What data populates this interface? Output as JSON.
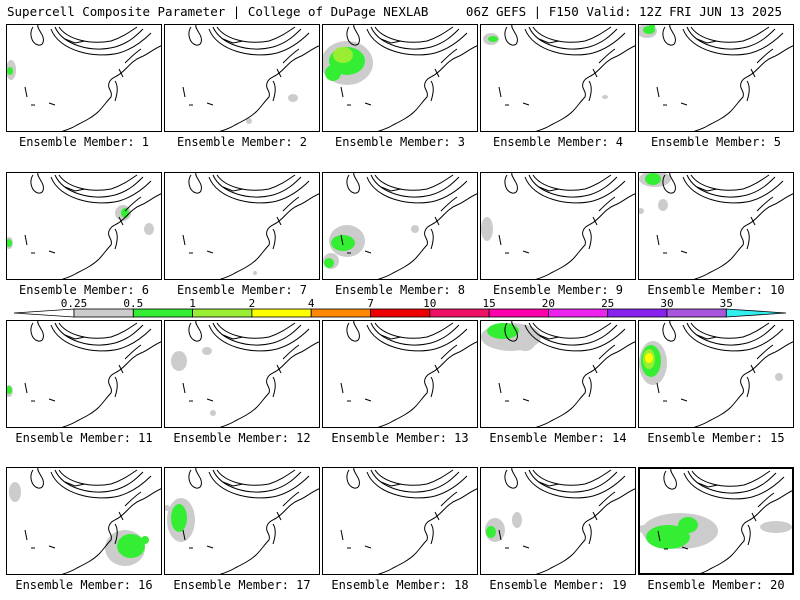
{
  "header": {
    "title_left": "Supercell Composite Parameter | College of DuPage NEXLAB",
    "title_right": "06Z GEFS | F150 Valid: 12Z FRI JUN 13 2025"
  },
  "colors": {
    "fill_025": "#cccccc",
    "fill_05": "#33ee33",
    "fill_1": "#99ee33",
    "fill_2": "#ffff00",
    "fill_4": "#ff8800",
    "fill_7": "#ee0000",
    "fill_10": "#ee1166",
    "fill_15": "#ff00aa",
    "fill_20": "#ee22ee",
    "fill_25": "#8822ee",
    "fill_30": "#aa55dd",
    "fill_35": "#33eeee"
  },
  "colorbar": {
    "labels": [
      "0.25",
      "0.5",
      "1",
      "2",
      "4",
      "7",
      "10",
      "15",
      "20",
      "25",
      "30",
      "35"
    ]
  },
  "members": [
    {
      "label": "Ensemble Member: 1"
    },
    {
      "label": "Ensemble Member: 2"
    },
    {
      "label": "Ensemble Member: 3"
    },
    {
      "label": "Ensemble Member: 4"
    },
    {
      "label": "Ensemble Member: 5"
    },
    {
      "label": "Ensemble Member: 6"
    },
    {
      "label": "Ensemble Member: 7"
    },
    {
      "label": "Ensemble Member: 8"
    },
    {
      "label": "Ensemble Member: 9"
    },
    {
      "label": "Ensemble Member: 10"
    },
    {
      "label": "Ensemble Member: 11"
    },
    {
      "label": "Ensemble Member: 12"
    },
    {
      "label": "Ensemble Member: 13"
    },
    {
      "label": "Ensemble Member: 14"
    },
    {
      "label": "Ensemble Member: 15"
    },
    {
      "label": "Ensemble Member: 16"
    },
    {
      "label": "Ensemble Member: 17"
    },
    {
      "label": "Ensemble Member: 18"
    },
    {
      "label": "Ensemble Member: 19"
    },
    {
      "label": "Ensemble Member: 20",
      "selected": true
    }
  ]
}
